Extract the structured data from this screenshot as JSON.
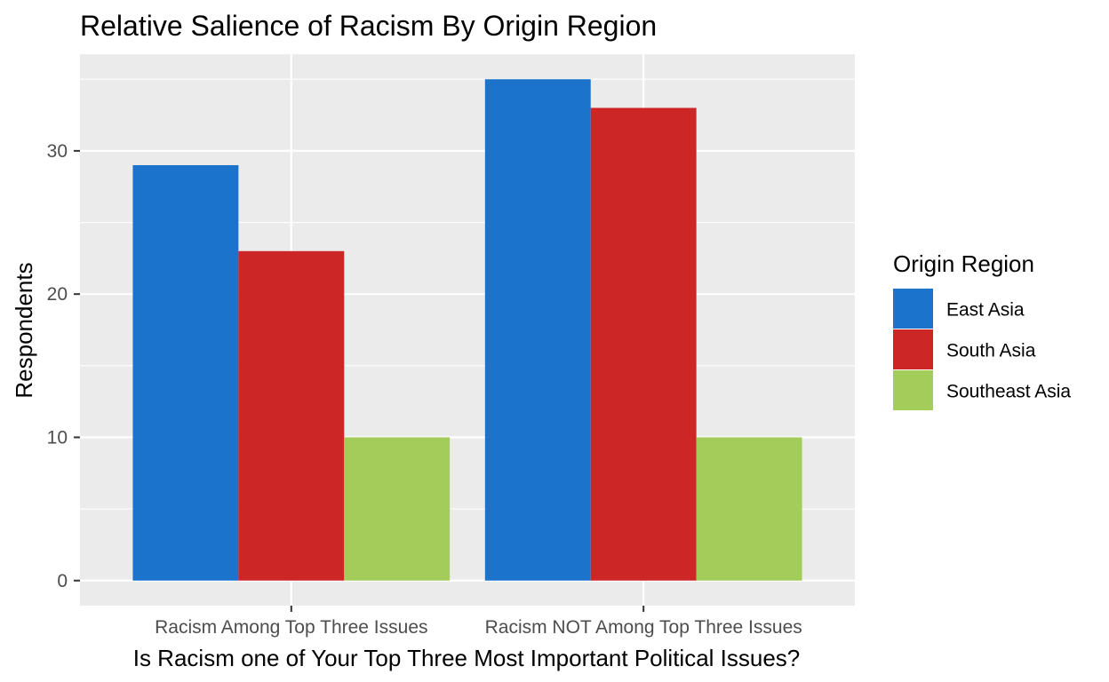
{
  "chart_data": {
    "type": "bar",
    "title": "Relative Salience of Racism By Origin Region",
    "xlabel": "Is Racism one of Your Top Three Most Important Political Issues?",
    "ylabel": "Respondents",
    "categories": [
      "Racism Among Top Three Issues",
      "Racism NOT Among Top Three Issues"
    ],
    "series": [
      {
        "name": "East Asia",
        "color": "#1b73cc",
        "values": [
          29,
          35
        ]
      },
      {
        "name": "South Asia",
        "color": "#cc2626",
        "values": [
          23,
          33
        ]
      },
      {
        "name": "Southeast Asia",
        "color": "#a3cc5a",
        "values": [
          10,
          10
        ]
      }
    ],
    "ylim": [
      -1.75,
      36.75
    ],
    "yticks": [
      0,
      10,
      20,
      30
    ],
    "ytick_labels": [
      "0",
      "10",
      "20",
      "30"
    ],
    "legend": {
      "title": "Origin Region",
      "position": "right"
    },
    "grid": true,
    "panel_background": "#ebebeb"
  }
}
